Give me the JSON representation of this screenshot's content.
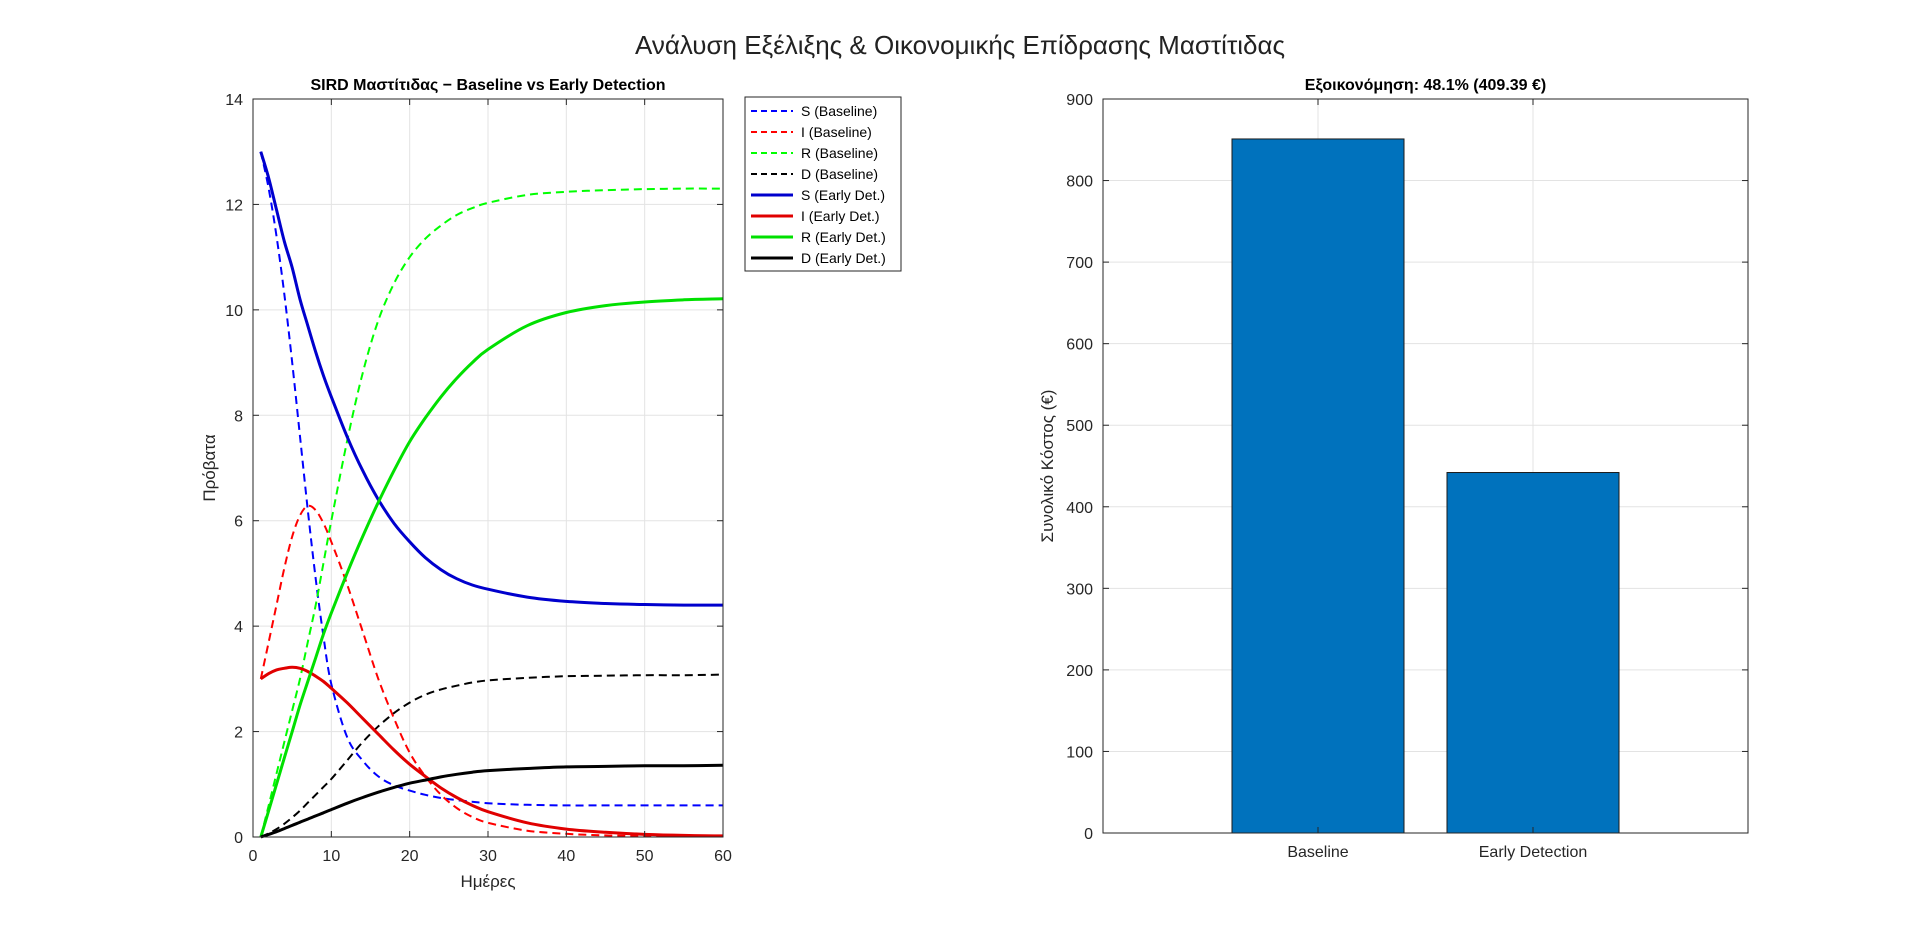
{
  "figure": {
    "title": "Ανάλυση Εξέλιξης & Οικονομικής Επίδρασης Μαστίτιδας"
  },
  "chart_data": [
    {
      "type": "line",
      "title": "SIRD Μαστίτιδας − Baseline vs Early Detection",
      "xlabel": "Ημέρες",
      "ylabel": "Πρόβατα",
      "xlim": [
        0,
        60
      ],
      "ylim": [
        0,
        14
      ],
      "xticks": [
        0,
        10,
        20,
        30,
        40,
        50,
        60
      ],
      "yticks": [
        0,
        2,
        4,
        6,
        8,
        10,
        12,
        14
      ],
      "grid": true,
      "legend_position": "outside-top-right",
      "x": [
        1,
        2,
        3,
        4,
        5,
        6,
        7,
        8,
        9,
        10,
        12,
        14,
        16,
        18,
        20,
        22,
        24,
        26,
        28,
        30,
        35,
        40,
        45,
        50,
        55,
        60
      ],
      "series": [
        {
          "name": "S (Baseline)",
          "color": "#0000ff",
          "dash": "dashed",
          "values": [
            13.0,
            12.3,
            11.4,
            10.3,
            9.0,
            7.6,
            6.2,
            4.9,
            3.8,
            2.9,
            1.9,
            1.45,
            1.15,
            0.98,
            0.88,
            0.8,
            0.74,
            0.7,
            0.67,
            0.64,
            0.61,
            0.6,
            0.6,
            0.6,
            0.6,
            0.6
          ]
        },
        {
          "name": "I (Baseline)",
          "color": "#ff0000",
          "dash": "dashed",
          "values": [
            3.0,
            3.7,
            4.4,
            5.1,
            5.7,
            6.1,
            6.28,
            6.2,
            5.95,
            5.6,
            4.8,
            3.9,
            3.0,
            2.25,
            1.6,
            1.15,
            0.8,
            0.55,
            0.38,
            0.27,
            0.12,
            0.06,
            0.03,
            0.02,
            0.01,
            0.01
          ]
        },
        {
          "name": "R (Baseline)",
          "color": "#00ff00",
          "dash": "dashed",
          "values": [
            0.0,
            0.6,
            1.2,
            1.8,
            2.4,
            3.0,
            3.7,
            4.4,
            5.2,
            6.0,
            7.5,
            8.8,
            9.8,
            10.5,
            11.0,
            11.35,
            11.6,
            11.8,
            11.93,
            12.03,
            12.18,
            12.24,
            12.27,
            12.29,
            12.3,
            12.3
          ]
        },
        {
          "name": "D (Baseline)",
          "color": "#000000",
          "dash": "dashed",
          "values": [
            0.0,
            0.07,
            0.15,
            0.25,
            0.37,
            0.5,
            0.65,
            0.8,
            0.95,
            1.1,
            1.45,
            1.8,
            2.1,
            2.35,
            2.55,
            2.7,
            2.8,
            2.87,
            2.93,
            2.97,
            3.02,
            3.05,
            3.06,
            3.07,
            3.07,
            3.08
          ]
        },
        {
          "name": "S (Early Det.)",
          "color": "#0000cd",
          "dash": "solid",
          "values": [
            13.0,
            12.5,
            11.9,
            11.3,
            10.8,
            10.2,
            9.7,
            9.2,
            8.75,
            8.35,
            7.6,
            6.95,
            6.4,
            5.95,
            5.6,
            5.3,
            5.07,
            4.9,
            4.78,
            4.7,
            4.55,
            4.47,
            4.43,
            4.41,
            4.4,
            4.4
          ]
        },
        {
          "name": "I (Early Det.)",
          "color": "#e00000",
          "dash": "solid",
          "values": [
            3.0,
            3.1,
            3.17,
            3.2,
            3.22,
            3.2,
            3.14,
            3.05,
            2.95,
            2.82,
            2.55,
            2.25,
            1.95,
            1.65,
            1.38,
            1.15,
            0.93,
            0.75,
            0.6,
            0.48,
            0.27,
            0.15,
            0.09,
            0.05,
            0.03,
            0.02
          ]
        },
        {
          "name": "R (Early Det.)",
          "color": "#00e000",
          "dash": "solid",
          "values": [
            0.0,
            0.5,
            1.0,
            1.5,
            2.0,
            2.5,
            2.95,
            3.4,
            3.85,
            4.25,
            5.0,
            5.7,
            6.35,
            6.95,
            7.5,
            7.95,
            8.35,
            8.7,
            9.0,
            9.25,
            9.7,
            9.95,
            10.08,
            10.15,
            10.19,
            10.21
          ]
        },
        {
          "name": "D (Early Det.)",
          "color": "#000000",
          "dash": "solid",
          "values": [
            0.0,
            0.05,
            0.1,
            0.16,
            0.22,
            0.28,
            0.34,
            0.4,
            0.46,
            0.52,
            0.64,
            0.75,
            0.85,
            0.94,
            1.02,
            1.08,
            1.14,
            1.19,
            1.23,
            1.26,
            1.3,
            1.33,
            1.34,
            1.35,
            1.35,
            1.36
          ]
        }
      ]
    },
    {
      "type": "bar",
      "title": "Εξοικονόμηση: 48.1% (409.39 €)",
      "xlabel": "",
      "ylabel": "Συνολικό Κόστος (€)",
      "categories": [
        "Baseline",
        "Early Detection"
      ],
      "values": [
        851,
        442
      ],
      "ylim": [
        0,
        900
      ],
      "yticks": [
        0,
        100,
        200,
        300,
        400,
        500,
        600,
        700,
        800,
        900
      ],
      "bar_color": "#0072bd",
      "grid": true
    }
  ]
}
